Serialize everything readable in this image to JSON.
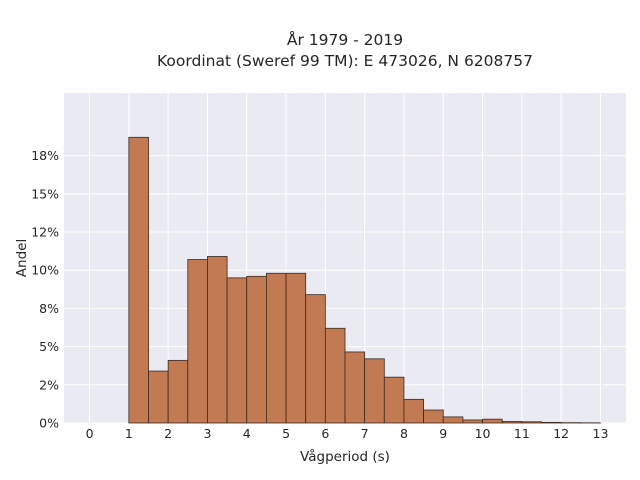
{
  "chart_data": {
    "type": "bar",
    "title_lines": [
      "År 1979 - 2019",
      "Koordinat (Sweref 99 TM): E 473026, N 6208757"
    ],
    "xlabel": "Vågperiod (s)",
    "ylabel": "Andel",
    "bin_width": 0.5,
    "bins": [
      {
        "x0": 0.0,
        "x1": 0.5,
        "value": 0.0
      },
      {
        "x0": 0.5,
        "x1": 1.0,
        "value": 0.0
      },
      {
        "x0": 1.0,
        "x1": 1.5,
        "value": 18.7
      },
      {
        "x0": 1.5,
        "x1": 2.0,
        "value": 3.4
      },
      {
        "x0": 2.0,
        "x1": 2.5,
        "value": 4.1
      },
      {
        "x0": 2.5,
        "x1": 3.0,
        "value": 10.7
      },
      {
        "x0": 3.0,
        "x1": 3.5,
        "value": 10.9
      },
      {
        "x0": 3.5,
        "x1": 4.0,
        "value": 9.5
      },
      {
        "x0": 4.0,
        "x1": 4.5,
        "value": 9.6
      },
      {
        "x0": 4.5,
        "x1": 5.0,
        "value": 9.8
      },
      {
        "x0": 5.0,
        "x1": 5.5,
        "value": 9.8
      },
      {
        "x0": 5.5,
        "x1": 6.0,
        "value": 8.4
      },
      {
        "x0": 6.0,
        "x1": 6.5,
        "value": 6.2
      },
      {
        "x0": 6.5,
        "x1": 7.0,
        "value": 4.65
      },
      {
        "x0": 7.0,
        "x1": 7.5,
        "value": 4.2
      },
      {
        "x0": 7.5,
        "x1": 8.0,
        "value": 3.0
      },
      {
        "x0": 8.0,
        "x1": 8.5,
        "value": 1.55
      },
      {
        "x0": 8.5,
        "x1": 9.0,
        "value": 0.85
      },
      {
        "x0": 9.0,
        "x1": 9.5,
        "value": 0.4
      },
      {
        "x0": 9.5,
        "x1": 10.0,
        "value": 0.2
      },
      {
        "x0": 10.0,
        "x1": 10.5,
        "value": 0.25
      },
      {
        "x0": 10.5,
        "x1": 11.0,
        "value": 0.1
      },
      {
        "x0": 11.0,
        "x1": 11.5,
        "value": 0.08
      },
      {
        "x0": 11.5,
        "x1": 12.0,
        "value": 0.04
      },
      {
        "x0": 12.0,
        "x1": 12.5,
        "value": 0.02
      },
      {
        "x0": 12.5,
        "x1": 13.0,
        "value": 0.01
      }
    ],
    "xlim": [
      -0.65,
      13.65
    ],
    "ylim": [
      0,
      21.6
    ],
    "x_ticks": [
      {
        "value": 0,
        "label": "0"
      },
      {
        "value": 1,
        "label": "1"
      },
      {
        "value": 2,
        "label": "2"
      },
      {
        "value": 3,
        "label": "3"
      },
      {
        "value": 4,
        "label": "4"
      },
      {
        "value": 5,
        "label": "5"
      },
      {
        "value": 6,
        "label": "6"
      },
      {
        "value": 7,
        "label": "7"
      },
      {
        "value": 8,
        "label": "8"
      },
      {
        "value": 9,
        "label": "9"
      },
      {
        "value": 10,
        "label": "10"
      },
      {
        "value": 11,
        "label": "11"
      },
      {
        "value": 12,
        "label": "12"
      },
      {
        "value": 13,
        "label": "13"
      }
    ],
    "y_ticks": [
      {
        "value": 0,
        "label": "0%"
      },
      {
        "value": 2.5,
        "label": "2%"
      },
      {
        "value": 5,
        "label": "5%"
      },
      {
        "value": 7.5,
        "label": "8%"
      },
      {
        "value": 10,
        "label": "10%"
      },
      {
        "value": 12.5,
        "label": "12%"
      },
      {
        "value": 15,
        "label": "15%"
      },
      {
        "value": 17.5,
        "label": "18%"
      }
    ],
    "grid": true,
    "colors": {
      "bar_fill": "#c27a53",
      "bar_edge": "#3b2a20",
      "plot_background": "#eaeaf2",
      "grid": "#ffffff",
      "text": "#262626"
    }
  }
}
